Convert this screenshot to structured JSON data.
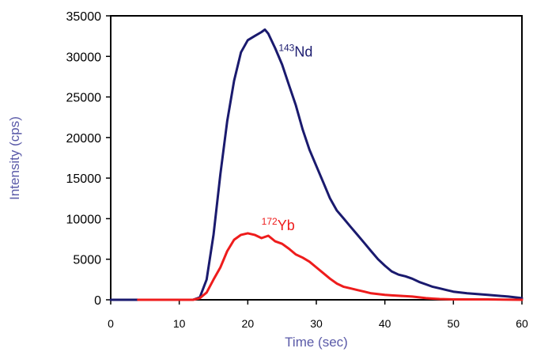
{
  "chart_data": {
    "type": "line",
    "xlabel": "Time (sec)",
    "ylabel": "Intensity (cps)",
    "xlim": [
      0,
      60
    ],
    "ylim": [
      0,
      35000
    ],
    "x_ticks": [
      "0",
      "10",
      "20",
      "30",
      "40",
      "50",
      "60"
    ],
    "y_ticks": [
      "0",
      "5000",
      "10000",
      "15000",
      "20000",
      "25000",
      "30000",
      "35000"
    ],
    "grid": false,
    "colors": {
      "axis": "#000000",
      "axis_title": "#5a5aa8"
    },
    "series": [
      {
        "label_sup": "143",
        "label_main": "Nd",
        "color": "#1a1a6e",
        "x": [
          0,
          12,
          13,
          14,
          15,
          16,
          17,
          18,
          19,
          20,
          21,
          22,
          22.5,
          23,
          24,
          25,
          26,
          27,
          28,
          29,
          30,
          31,
          32,
          33,
          34,
          35,
          36,
          37,
          38,
          39,
          40,
          41,
          42,
          43,
          44,
          45,
          46,
          47,
          48,
          49,
          50,
          52,
          55,
          58,
          60
        ],
        "y": [
          0,
          0,
          300,
          2500,
          8000,
          15500,
          22000,
          27000,
          30500,
          32000,
          32500,
          33000,
          33300,
          32800,
          31000,
          29000,
          26500,
          24000,
          21000,
          18500,
          16500,
          14500,
          12500,
          11000,
          10000,
          9000,
          8000,
          7000,
          6000,
          5000,
          4200,
          3500,
          3100,
          2900,
          2600,
          2200,
          1900,
          1600,
          1400,
          1200,
          1000,
          800,
          600,
          400,
          200
        ]
      },
      {
        "label_sup": "172",
        "label_main": "Yb",
        "color": "#ee1c1c",
        "x": [
          4,
          12,
          13,
          14,
          15,
          16,
          17,
          18,
          19,
          20,
          21,
          22,
          23,
          24,
          25,
          26,
          27,
          28,
          29,
          30,
          31,
          32,
          33,
          34,
          35,
          36,
          37,
          38,
          39,
          40,
          41,
          42,
          43,
          44,
          45,
          46,
          47,
          48,
          50,
          55,
          60
        ],
        "y": [
          0,
          0,
          200,
          900,
          2500,
          4000,
          6000,
          7400,
          8000,
          8200,
          8000,
          7600,
          7900,
          7200,
          6900,
          6300,
          5600,
          5200,
          4700,
          4000,
          3300,
          2600,
          2000,
          1600,
          1400,
          1200,
          1000,
          800,
          700,
          600,
          550,
          500,
          450,
          400,
          300,
          200,
          150,
          100,
          50,
          50,
          0
        ]
      }
    ]
  }
}
